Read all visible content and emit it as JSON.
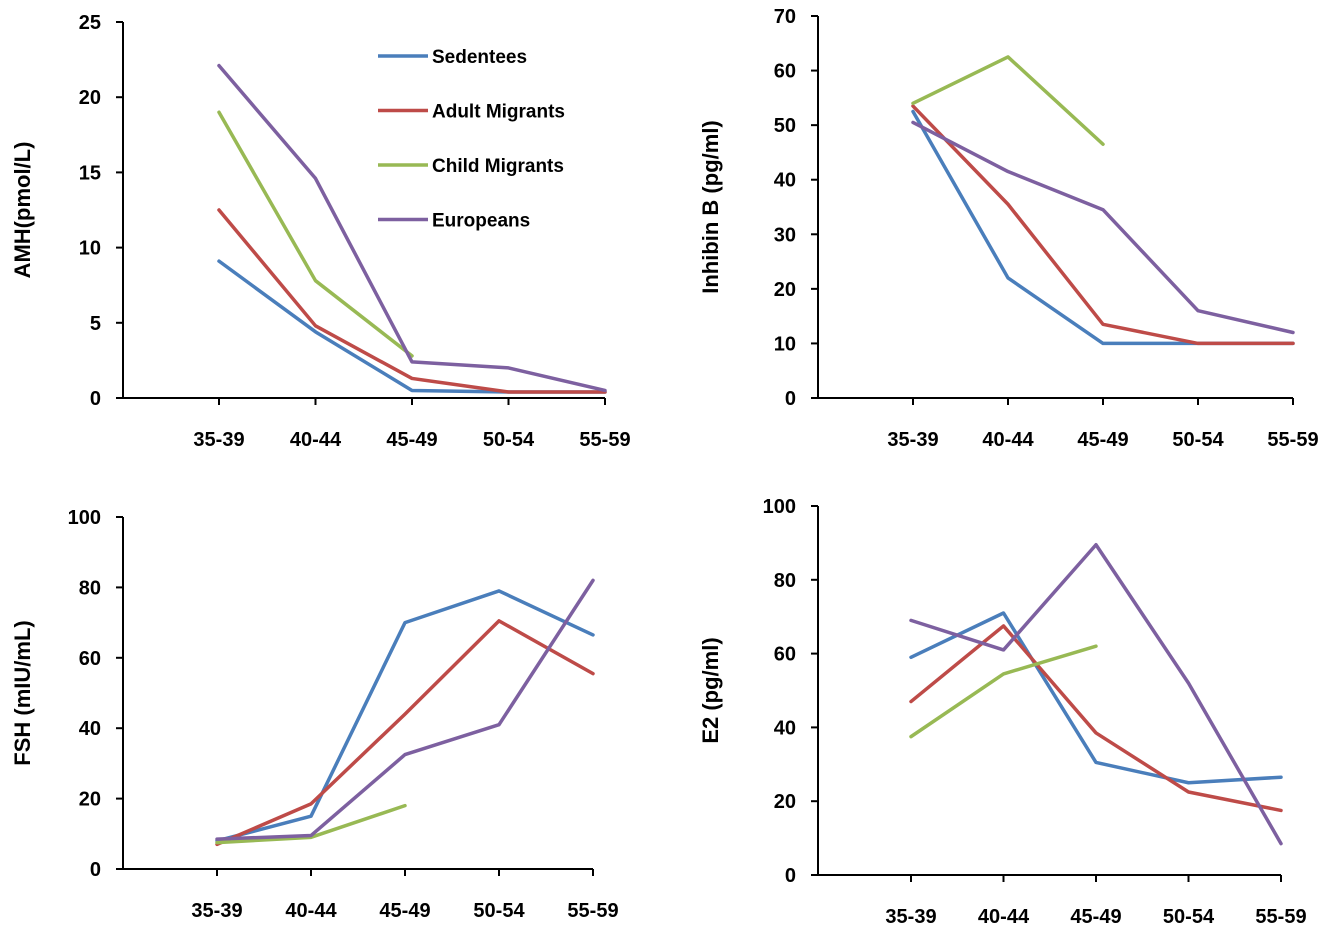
{
  "colors": {
    "Sedentees": "#4a7ebb",
    "Adult Migrants": "#be4b48",
    "Child Migrants": "#98b954",
    "Europeans": "#7d60a0"
  },
  "legend": [
    {
      "label": "Sedentees",
      "color": "#4a7ebb"
    },
    {
      "label": "Adult Migrants",
      "color": "#be4b48"
    },
    {
      "label": "Child Migrants",
      "color": "#98b954"
    },
    {
      "label": "Europeans",
      "color": "#7d60a0"
    }
  ],
  "chart_data": [
    {
      "type": "line",
      "ylabel": "AMH(pmol/L)",
      "categories": [
        "35-39",
        "40-44",
        "45-49",
        "50-54",
        "55-59"
      ],
      "ylim": [
        0,
        25
      ],
      "yticks": [
        0,
        5,
        10,
        15,
        20,
        25
      ],
      "legend": "top-right",
      "series": [
        {
          "name": "Sedentees",
          "values": [
            9.1,
            4.4,
            0.5,
            0.4,
            0.4
          ]
        },
        {
          "name": "Adult Migrants",
          "values": [
            12.5,
            4.8,
            1.3,
            0.4,
            0.4
          ]
        },
        {
          "name": "Child Migrants",
          "values": [
            19.0,
            7.8,
            2.8,
            null,
            null
          ]
        },
        {
          "name": "Europeans",
          "values": [
            22.1,
            14.6,
            2.4,
            2.0,
            0.5
          ]
        }
      ]
    },
    {
      "type": "line",
      "ylabel": "Inhibin B (pg/ml)",
      "categories": [
        "35-39",
        "40-44",
        "45-49",
        "50-54",
        "55-59"
      ],
      "ylim": [
        0,
        70
      ],
      "yticks": [
        0,
        10,
        20,
        30,
        40,
        50,
        60,
        70
      ],
      "series": [
        {
          "name": "Sedentees",
          "values": [
            52.5,
            22.0,
            10.0,
            10.0,
            10.0
          ]
        },
        {
          "name": "Adult Migrants",
          "values": [
            53.5,
            35.5,
            13.5,
            10.0,
            10.0
          ]
        },
        {
          "name": "Child Migrants",
          "values": [
            54.0,
            62.5,
            46.5,
            null,
            null
          ]
        },
        {
          "name": "Europeans",
          "values": [
            50.5,
            41.5,
            34.5,
            16.0,
            12.0
          ]
        }
      ]
    },
    {
      "type": "line",
      "ylabel": "FSH (mIU/mL)",
      "categories": [
        "35-39",
        "40-44",
        "45-49",
        "50-54",
        "55-59"
      ],
      "ylim": [
        0,
        100
      ],
      "yticks": [
        0,
        20,
        40,
        60,
        80,
        100
      ],
      "series": [
        {
          "name": "Sedentees",
          "values": [
            8.0,
            15.0,
            70.0,
            79.0,
            66.5
          ]
        },
        {
          "name": "Adult Migrants",
          "values": [
            7.0,
            18.5,
            44.0,
            70.5,
            55.5
          ]
        },
        {
          "name": "Child Migrants",
          "values": [
            7.5,
            9.0,
            18.0,
            null,
            null
          ]
        },
        {
          "name": "Europeans",
          "values": [
            8.5,
            9.5,
            32.5,
            41.0,
            82.0
          ]
        }
      ]
    },
    {
      "type": "line",
      "ylabel": "E2 (pg/ml)",
      "categories": [
        "35-39",
        "40-44",
        "45-49",
        "50-54",
        "55-59"
      ],
      "ylim": [
        0,
        100
      ],
      "yticks": [
        0,
        20,
        40,
        60,
        80,
        100
      ],
      "series": [
        {
          "name": "Sedentees",
          "values": [
            59.0,
            71.0,
            30.5,
            25.0,
            26.5
          ]
        },
        {
          "name": "Adult Migrants",
          "values": [
            47.0,
            67.5,
            38.5,
            22.5,
            17.5
          ]
        },
        {
          "name": "Child Migrants",
          "values": [
            37.5,
            54.5,
            62.0,
            null,
            null
          ]
        },
        {
          "name": "Europeans",
          "values": [
            69.0,
            61.0,
            89.5,
            52.0,
            8.5
          ]
        }
      ]
    }
  ]
}
